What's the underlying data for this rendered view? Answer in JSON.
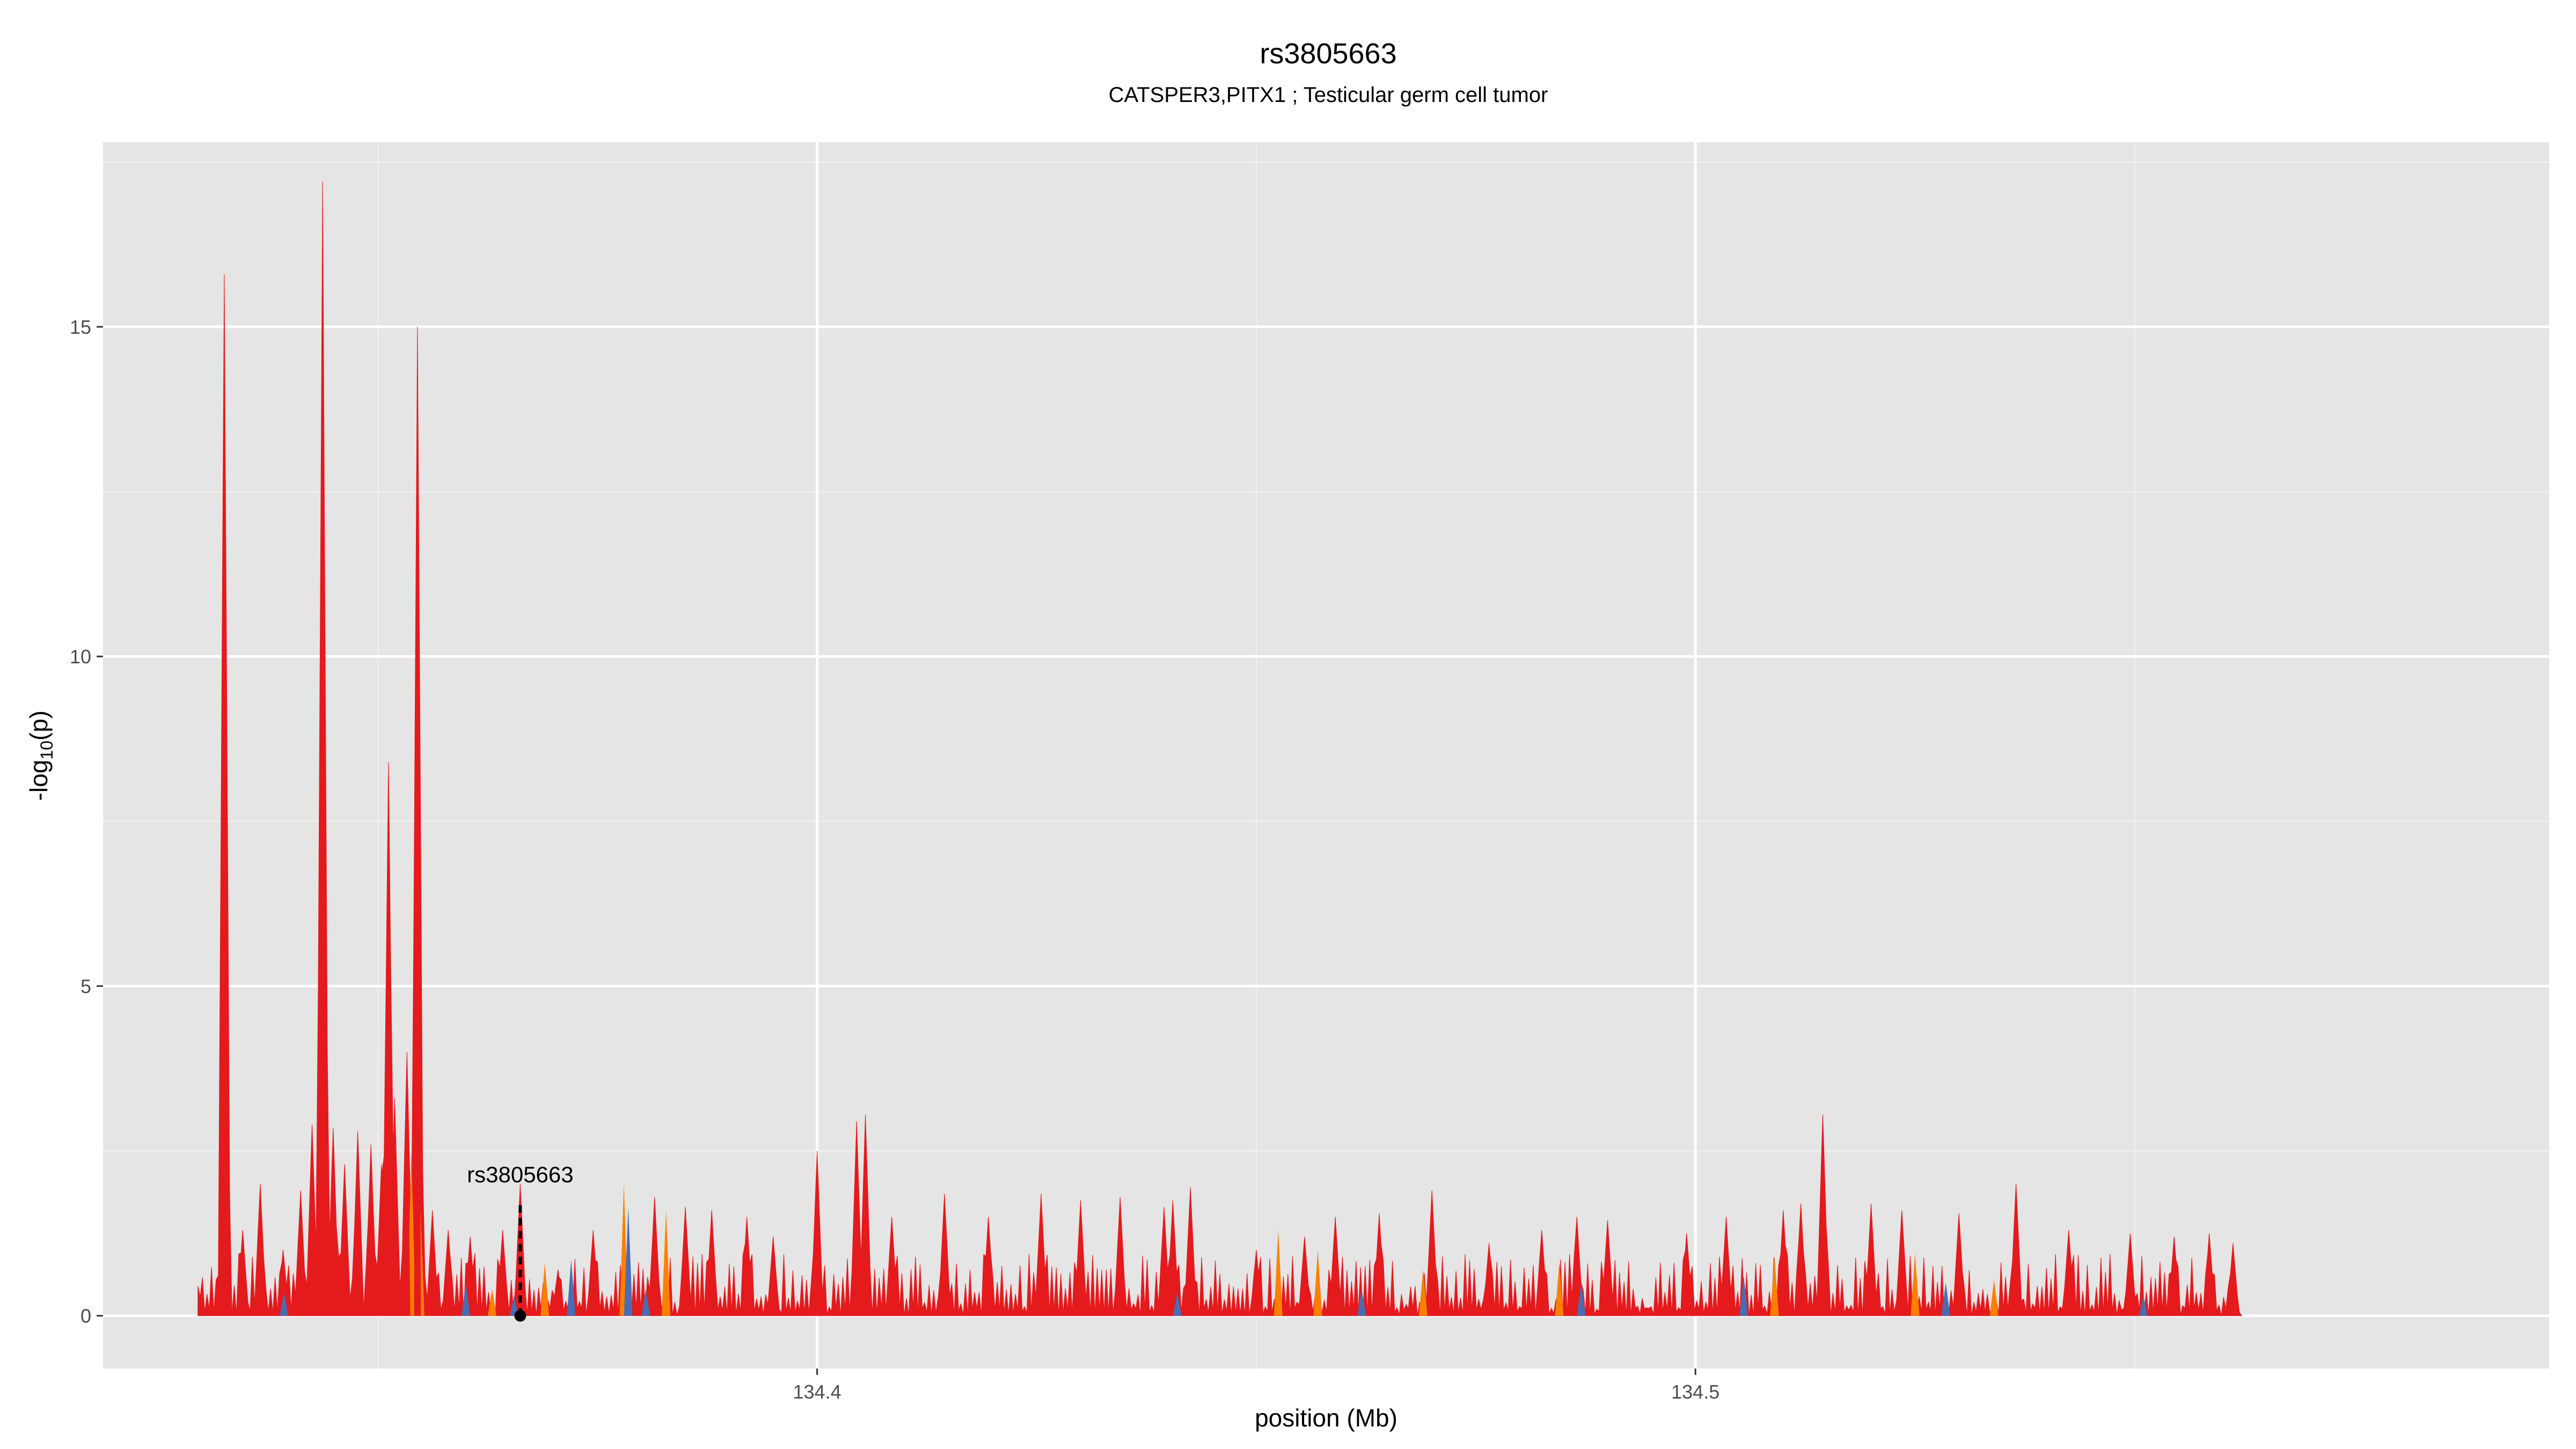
{
  "chart_data": {
    "type": "area",
    "title": "rs3805663",
    "subtitle": "CATSPER3,PITX1 ; Testicular germ cell tumor",
    "xlabel": "position (Mb)",
    "ylabel_main": "-log",
    "ylabel_sub": "10",
    "ylabel_tail": "(p)",
    "xlim": [
      134.3187,
      134.5972
    ],
    "ylim": [
      -0.8,
      17.8
    ],
    "x_ticks": [
      134.4,
      134.5
    ],
    "x_tick_labels": [
      "134.4",
      "134.5"
    ],
    "x_minor_ticks": [
      134.35,
      134.45,
      134.55
    ],
    "y_ticks": [
      0,
      5,
      10,
      15
    ],
    "y_tick_labels": [
      "0",
      "5",
      "10",
      "15"
    ],
    "y_minor_ticks": [
      2.5,
      7.5,
      12.5,
      17.5
    ],
    "grid": true,
    "panel_color": "#e5e5e5",
    "x_range": [
      134.3295,
      134.5622
    ],
    "series": [
      {
        "color": "#e41a1c",
        "peaks": [
          [
            134.3295,
            0.45
          ],
          [
            134.3325,
            15.8
          ],
          [
            134.3346,
            1.3
          ],
          [
            134.3366,
            2.0
          ],
          [
            134.3392,
            1.0
          ],
          [
            134.3412,
            1.9
          ],
          [
            134.3425,
            2.9
          ],
          [
            134.3437,
            17.2
          ],
          [
            134.3449,
            2.85
          ],
          [
            134.3462,
            2.3
          ],
          [
            134.3477,
            2.8
          ],
          [
            134.3492,
            2.6
          ],
          [
            134.3504,
            2.3
          ],
          [
            134.3512,
            8.4
          ],
          [
            134.3519,
            3.3
          ],
          [
            134.3533,
            4.0
          ],
          [
            134.3545,
            15.0
          ],
          [
            134.3562,
            1.6
          ],
          [
            134.358,
            1.3
          ],
          [
            134.3605,
            1.2
          ],
          [
            134.3642,
            1.3
          ],
          [
            134.3662,
            2.0
          ],
          [
            134.3705,
            0.7
          ],
          [
            134.3745,
            1.3
          ],
          [
            134.3815,
            1.8
          ],
          [
            134.385,
            1.65
          ],
          [
            134.388,
            1.6
          ],
          [
            134.392,
            1.5
          ],
          [
            134.395,
            1.2
          ],
          [
            134.4,
            2.5
          ],
          [
            134.4045,
            2.95
          ],
          [
            134.4055,
            3.05
          ],
          [
            134.4085,
            1.5
          ],
          [
            134.4145,
            1.85
          ],
          [
            134.4195,
            1.5
          ],
          [
            134.4255,
            1.85
          ],
          [
            134.43,
            1.75
          ],
          [
            134.4345,
            1.8
          ],
          [
            134.4395,
            1.65
          ],
          [
            134.4405,
            1.75
          ],
          [
            134.4425,
            1.95
          ],
          [
            134.45,
            1.0
          ],
          [
            134.4555,
            1.2
          ],
          [
            134.459,
            1.5
          ],
          [
            134.464,
            1.55
          ],
          [
            134.47,
            1.9
          ],
          [
            134.4765,
            1.1
          ],
          [
            134.4825,
            1.3
          ],
          [
            134.4865,
            1.5
          ],
          [
            134.49,
            1.45
          ],
          [
            134.499,
            1.25
          ],
          [
            134.5035,
            1.5
          ],
          [
            134.51,
            1.6
          ],
          [
            134.512,
            1.7
          ],
          [
            134.5145,
            3.05
          ],
          [
            134.52,
            1.7
          ],
          [
            134.5235,
            1.6
          ],
          [
            134.53,
            1.55
          ],
          [
            134.5365,
            2.0
          ],
          [
            134.5425,
            1.3
          ],
          [
            134.5495,
            1.25
          ],
          [
            134.5545,
            1.2
          ],
          [
            134.5585,
            1.25
          ],
          [
            134.5612,
            1.1
          ]
        ]
      },
      {
        "color": "#ff7f00",
        "peaks": [
          [
            134.3538,
            2.5
          ],
          [
            134.3548,
            1.8
          ],
          [
            134.363,
            0.4
          ],
          [
            134.369,
            0.8
          ],
          [
            134.378,
            2.0
          ],
          [
            134.3828,
            1.6
          ],
          [
            134.4525,
            1.3
          ],
          [
            134.457,
            1.0
          ],
          [
            134.469,
            0.7
          ],
          [
            134.4845,
            0.8
          ],
          [
            134.509,
            0.9
          ],
          [
            134.525,
            0.95
          ],
          [
            134.534,
            0.55
          ]
        ]
      },
      {
        "color": "#4a6cb3",
        "peaks": [
          [
            134.3393,
            0.35
          ],
          [
            134.36,
            0.5
          ],
          [
            134.3655,
            0.3
          ],
          [
            134.372,
            0.85
          ],
          [
            134.3785,
            1.65
          ],
          [
            134.3805,
            0.4
          ],
          [
            134.441,
            0.35
          ],
          [
            134.462,
            0.4
          ],
          [
            134.487,
            0.5
          ],
          [
            134.5055,
            0.6
          ],
          [
            134.5285,
            0.5
          ],
          [
            134.551,
            0.3
          ]
        ]
      }
    ],
    "highlight_snp": {
      "label": "rs3805663",
      "x": 134.3662,
      "y": 0,
      "line_top": 1.7
    }
  }
}
